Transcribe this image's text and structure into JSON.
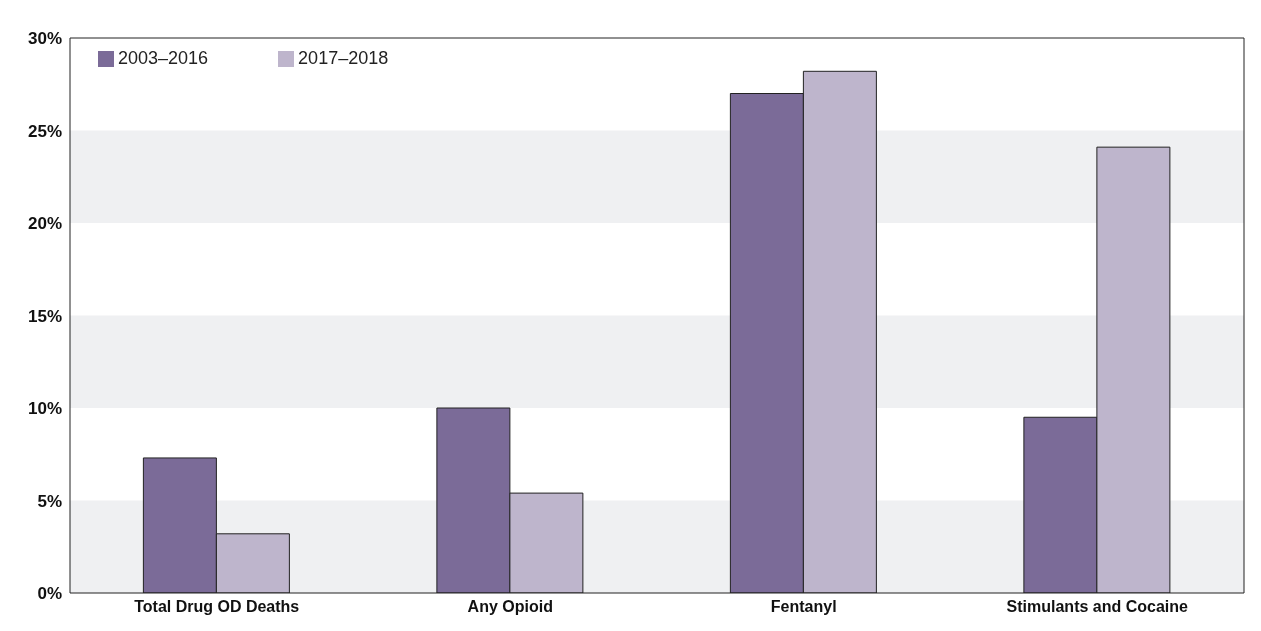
{
  "chart_data": {
    "type": "bar",
    "categories": [
      "Total Drug OD Deaths",
      "Any Opioid",
      "Fentanyl",
      "Stimulants and Cocaine"
    ],
    "series": [
      {
        "name": "2003–2016",
        "color": "#7b6b98",
        "values": [
          7.3,
          10.0,
          27.0,
          9.5
        ]
      },
      {
        "name": "2017–2018",
        "color": "#beb5cc",
        "values": [
          3.2,
          5.4,
          28.2,
          24.1
        ]
      }
    ],
    "ylim": [
      0,
      30
    ],
    "yticks": [
      {
        "value": 0,
        "label": "0%"
      },
      {
        "value": 5,
        "label": "5%"
      },
      {
        "value": 10,
        "label": "10%"
      },
      {
        "value": 15,
        "label": "15%"
      },
      {
        "value": 20,
        "label": "20%"
      },
      {
        "value": 25,
        "label": "25%"
      },
      {
        "value": 30,
        "label": "30%"
      }
    ],
    "bands": [
      {
        "axis": "y",
        "from": 0,
        "to": 5,
        "color": "#eff0f2"
      },
      {
        "axis": "y",
        "from": 10,
        "to": 15,
        "color": "#eff0f2"
      },
      {
        "axis": "y",
        "from": 20,
        "to": 25,
        "color": "#eff0f2"
      }
    ],
    "legend": "top left"
  }
}
